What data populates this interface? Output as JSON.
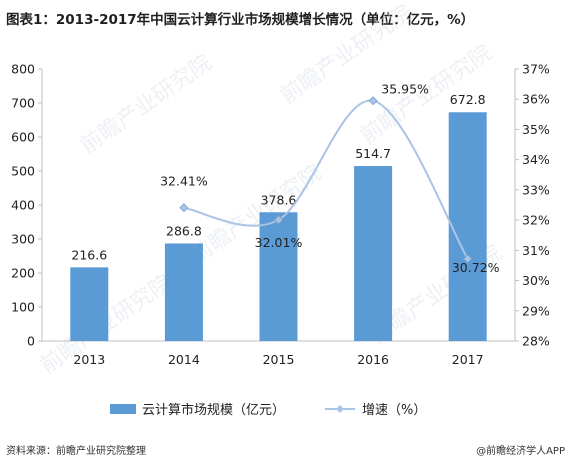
{
  "title": "图表1：2013-2017年中国云计算行业市场规模增长情况（单位：亿元，%）",
  "source": "资料来源：前瞻产业研究院整理",
  "brand": "@前瞻经济学人APP",
  "watermark": "前瞻产业研究院",
  "chart_data": {
    "type": "bar+line",
    "categories": [
      "2013",
      "2014",
      "2015",
      "2016",
      "2017"
    ],
    "series": [
      {
        "name": "云计算市场规模（亿元）",
        "type": "bar",
        "axis": "left",
        "values": [
          216.6,
          286.8,
          378.6,
          514.7,
          672.8
        ],
        "labels": [
          "216.6",
          "286.8",
          "378.6",
          "514.7",
          "672.8"
        ]
      },
      {
        "name": "增速（%）",
        "type": "line",
        "axis": "right",
        "smooth": true,
        "values": [
          null,
          32.41,
          32.01,
          35.95,
          30.72
        ],
        "labels": [
          "",
          "32.41%",
          "32.01%",
          "35.95%",
          "30.72%"
        ]
      }
    ],
    "left_axis": {
      "min": 0,
      "max": 800,
      "step": 100,
      "ticks": [
        "0",
        "100",
        "200",
        "300",
        "400",
        "500",
        "600",
        "700",
        "800"
      ]
    },
    "right_axis": {
      "min": 28,
      "max": 37,
      "step": 1,
      "ticks": [
        "28%",
        "29%",
        "30%",
        "31%",
        "32%",
        "33%",
        "34%",
        "35%",
        "36%",
        "37%"
      ]
    },
    "legend_position": "bottom",
    "grid": false,
    "colors": {
      "bar": "#5B9BD5",
      "line": "#A9C4E4"
    }
  }
}
